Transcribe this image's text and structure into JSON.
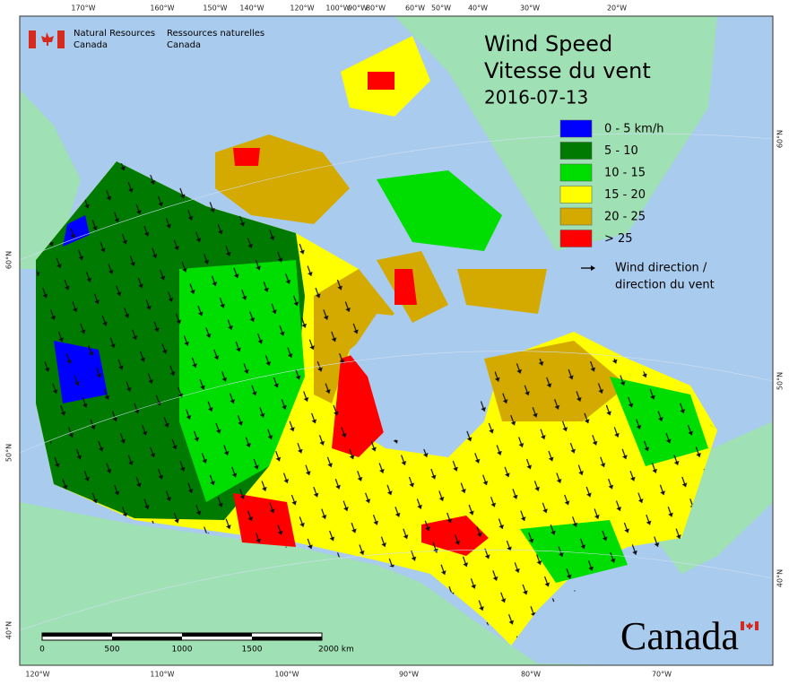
{
  "header": {
    "agency_en": [
      "Natural Resources",
      "Canada"
    ],
    "agency_fr": [
      "Ressources naturelles",
      "Canada"
    ]
  },
  "title": [
    "Wind Speed",
    "Vitesse du vent"
  ],
  "date": "2016-07-13",
  "legend": {
    "items": [
      {
        "label": "0 - 5 km/h",
        "color": "#0000ff"
      },
      {
        "label": "5 - 10",
        "color": "#007a00"
      },
      {
        "label": "10 - 15",
        "color": "#00dd00"
      },
      {
        "label": "15 - 20",
        "color": "#ffff00"
      },
      {
        "label": "20 - 25",
        "color": "#d4aa00"
      },
      {
        "label": "> 25",
        "color": "#ff0000"
      }
    ],
    "direction": [
      "Wind direction /",
      "direction du vent"
    ]
  },
  "graticule": {
    "top": [
      "170°W",
      "160°W",
      "150°W",
      "140°W",
      "120°W",
      "100°W",
      "90°W",
      "80°W",
      "60°W",
      "50°W",
      "40°W",
      "30°W",
      "20°W"
    ],
    "bottom": [
      "120°W",
      "110°W",
      "100°W",
      "90°W",
      "80°W",
      "70°W"
    ],
    "left": [
      "60°N",
      "50°N",
      "40°N"
    ],
    "right": [
      "60°N",
      "50°N",
      "40°N"
    ]
  },
  "scale_bar": [
    "0",
    "500",
    "1000",
    "1500",
    "2000  km"
  ],
  "wordmark": "Canada"
}
